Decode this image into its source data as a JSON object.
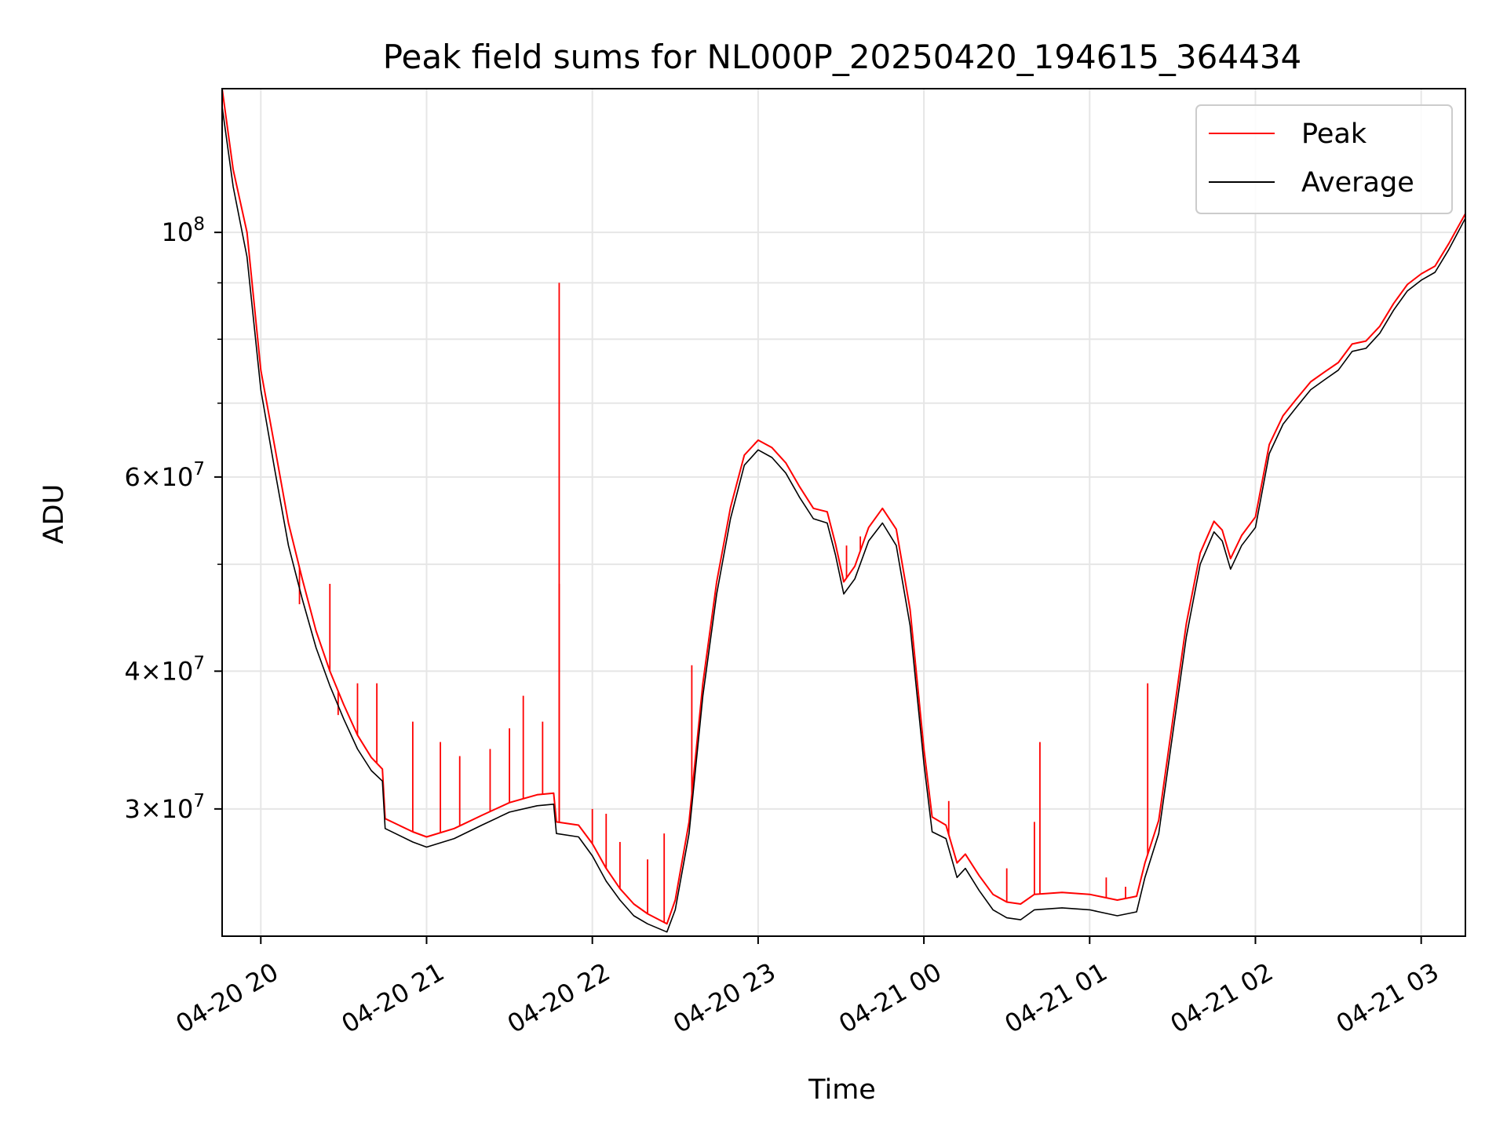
{
  "chart_data": {
    "type": "line",
    "title": "Peak field sums for NL000P_20250420_194615_364434",
    "xlabel": "Time",
    "ylabel": "ADU",
    "yscale": "log",
    "xlim": [
      "2025-04-20 19:46",
      "2025-04-21 03:16"
    ],
    "ylim": [
      23000000,
      135000000
    ],
    "grid": true,
    "legend_position": "top-right",
    "x_ticks": [
      "04-20 20",
      "04-20 21",
      "04-20 22",
      "04-20 23",
      "04-21 00",
      "04-21 01",
      "04-21 02",
      "04-21 03"
    ],
    "y_major_ticks": [
      {
        "value": 30000000,
        "mantissa": "3",
        "exponent": "7"
      },
      {
        "value": 40000000,
        "mantissa": "4",
        "exponent": "7"
      },
      {
        "value": 60000000,
        "mantissa": "6",
        "exponent": "7"
      },
      {
        "value": 100000000,
        "mantissa": "",
        "exponent": "8"
      }
    ],
    "y_minor_ticks": [
      50000000,
      70000000,
      80000000,
      90000000
    ],
    "x_time_format": "minutes relative to 2025-04-20 19:46",
    "series": [
      {
        "name": "Average",
        "color": "#000000",
        "points": [
          [
            "2025-04-20 19:46",
            130000000
          ],
          [
            "2025-04-20 19:50",
            110000000
          ],
          [
            "2025-04-20 19:55",
            95000000
          ],
          [
            "2025-04-20 20:00",
            72000000
          ],
          [
            "2025-04-20 20:05",
            61000000
          ],
          [
            "2025-04-20 20:10",
            52000000
          ],
          [
            "2025-04-20 20:15",
            46500000
          ],
          [
            "2025-04-20 20:20",
            42000000
          ],
          [
            "2025-04-20 20:25",
            38800000
          ],
          [
            "2025-04-20 20:30",
            36200000
          ],
          [
            "2025-04-20 20:35",
            34000000
          ],
          [
            "2025-04-20 20:40",
            32500000
          ],
          [
            "2025-04-20 20:44",
            31800000
          ],
          [
            "2025-04-20 20:45",
            28800000
          ],
          [
            "2025-04-20 20:55",
            28000000
          ],
          [
            "2025-04-20 21:00",
            27700000
          ],
          [
            "2025-04-20 21:10",
            28200000
          ],
          [
            "2025-04-20 21:20",
            29000000
          ],
          [
            "2025-04-20 21:30",
            29800000
          ],
          [
            "2025-04-20 21:40",
            30200000
          ],
          [
            "2025-04-20 21:46",
            30300000
          ],
          [
            "2025-04-20 21:47",
            28500000
          ],
          [
            "2025-04-20 21:55",
            28300000
          ],
          [
            "2025-04-20 22:00",
            27200000
          ],
          [
            "2025-04-20 22:05",
            25800000
          ],
          [
            "2025-04-20 22:10",
            24800000
          ],
          [
            "2025-04-20 22:15",
            24000000
          ],
          [
            "2025-04-20 22:20",
            23600000
          ],
          [
            "2025-04-20 22:27",
            23200000
          ],
          [
            "2025-04-20 22:30",
            24300000
          ],
          [
            "2025-04-20 22:35",
            28500000
          ],
          [
            "2025-04-20 22:40",
            38000000
          ],
          [
            "2025-04-20 22:45",
            47000000
          ],
          [
            "2025-04-20 22:50",
            55000000
          ],
          [
            "2025-04-20 22:55",
            61500000
          ],
          [
            "2025-04-20 23:00",
            63500000
          ],
          [
            "2025-04-20 23:05",
            62500000
          ],
          [
            "2025-04-20 23:10",
            60500000
          ],
          [
            "2025-04-20 23:15",
            57500000
          ],
          [
            "2025-04-20 23:20",
            55000000
          ],
          [
            "2025-04-20 23:25",
            54500000
          ],
          [
            "2025-04-20 23:28",
            51000000
          ],
          [
            "2025-04-20 23:31",
            47000000
          ],
          [
            "2025-04-20 23:35",
            48500000
          ],
          [
            "2025-04-20 23:40",
            52500000
          ],
          [
            "2025-04-20 23:45",
            54500000
          ],
          [
            "2025-04-20 23:50",
            52000000
          ],
          [
            "2025-04-20 23:55",
            44000000
          ],
          [
            "2025-04-21 00:00",
            33000000
          ],
          [
            "2025-04-21 00:03",
            28600000
          ],
          [
            "2025-04-21 00:08",
            28200000
          ],
          [
            "2025-04-21 00:12",
            26000000
          ],
          [
            "2025-04-21 00:15",
            26500000
          ],
          [
            "2025-04-21 00:20",
            25300000
          ],
          [
            "2025-04-21 00:25",
            24300000
          ],
          [
            "2025-04-21 00:30",
            23900000
          ],
          [
            "2025-04-21 00:35",
            23800000
          ],
          [
            "2025-04-21 00:40",
            24300000
          ],
          [
            "2025-04-21 00:50",
            24400000
          ],
          [
            "2025-04-21 01:00",
            24300000
          ],
          [
            "2025-04-21 01:10",
            24000000
          ],
          [
            "2025-04-21 01:17",
            24200000
          ],
          [
            "2025-04-21 01:20",
            26000000
          ],
          [
            "2025-04-21 01:25",
            28500000
          ],
          [
            "2025-04-21 01:30",
            35000000
          ],
          [
            "2025-04-21 01:35",
            43000000
          ],
          [
            "2025-04-21 01:40",
            50000000
          ],
          [
            "2025-04-21 01:45",
            53500000
          ],
          [
            "2025-04-21 01:48",
            52500000
          ],
          [
            "2025-04-21 01:51",
            49500000
          ],
          [
            "2025-04-21 01:55",
            52000000
          ],
          [
            "2025-04-21 02:00",
            54000000
          ],
          [
            "2025-04-21 02:05",
            63000000
          ],
          [
            "2025-04-21 02:10",
            67000000
          ],
          [
            "2025-04-21 02:15",
            69500000
          ],
          [
            "2025-04-21 02:20",
            72000000
          ],
          [
            "2025-04-21 02:25",
            73500000
          ],
          [
            "2025-04-21 02:30",
            75000000
          ],
          [
            "2025-04-21 02:35",
            78000000
          ],
          [
            "2025-04-21 02:40",
            78500000
          ],
          [
            "2025-04-21 02:45",
            81000000
          ],
          [
            "2025-04-21 02:50",
            85000000
          ],
          [
            "2025-04-21 02:55",
            88500000
          ],
          [
            "2025-04-21 03:00",
            90500000
          ],
          [
            "2025-04-21 03:05",
            92000000
          ],
          [
            "2025-04-21 03:10",
            96500000
          ],
          [
            "2025-04-21 03:16",
            103000000
          ]
        ]
      },
      {
        "name": "Peak",
        "color": "#ff0000",
        "points": [
          [
            "2025-04-20 19:46",
            135000000
          ],
          [
            "2025-04-20 19:50",
            114000000
          ],
          [
            "2025-04-20 19:55",
            100000000
          ],
          [
            "2025-04-20 20:00",
            75000000
          ],
          [
            "2025-04-20 20:05",
            64000000
          ],
          [
            "2025-04-20 20:10",
            54500000
          ],
          [
            "2025-04-20 20:15",
            48500000
          ],
          [
            "2025-04-20 20:20",
            43500000
          ],
          [
            "2025-04-20 20:25",
            40000000
          ],
          [
            "2025-04-20 20:30",
            37300000
          ],
          [
            "2025-04-20 20:35",
            35000000
          ],
          [
            "2025-04-20 20:40",
            33400000
          ],
          [
            "2025-04-20 20:44",
            32600000
          ],
          [
            "2025-04-20 20:45",
            29400000
          ],
          [
            "2025-04-20 20:55",
            28600000
          ],
          [
            "2025-04-20 21:00",
            28300000
          ],
          [
            "2025-04-20 21:10",
            28800000
          ],
          [
            "2025-04-20 21:20",
            29600000
          ],
          [
            "2025-04-20 21:30",
            30400000
          ],
          [
            "2025-04-20 21:40",
            30900000
          ],
          [
            "2025-04-20 21:46",
            31000000
          ],
          [
            "2025-04-20 21:47",
            29200000
          ],
          [
            "2025-04-20 21:55",
            29000000
          ],
          [
            "2025-04-20 22:00",
            27900000
          ],
          [
            "2025-04-20 22:05",
            26500000
          ],
          [
            "2025-04-20 22:10",
            25400000
          ],
          [
            "2025-04-20 22:15",
            24600000
          ],
          [
            "2025-04-20 22:20",
            24100000
          ],
          [
            "2025-04-20 22:27",
            23600000
          ],
          [
            "2025-04-20 22:30",
            24800000
          ],
          [
            "2025-04-20 22:35",
            29200000
          ],
          [
            "2025-04-20 22:40",
            39000000
          ],
          [
            "2025-04-20 22:45",
            48200000
          ],
          [
            "2025-04-20 22:50",
            56300000
          ],
          [
            "2025-04-20 22:55",
            62800000
          ],
          [
            "2025-04-20 23:00",
            64800000
          ],
          [
            "2025-04-20 23:05",
            63800000
          ],
          [
            "2025-04-20 23:10",
            61800000
          ],
          [
            "2025-04-20 23:15",
            58800000
          ],
          [
            "2025-04-20 23:20",
            56200000
          ],
          [
            "2025-04-20 23:25",
            55800000
          ],
          [
            "2025-04-20 23:28",
            52200000
          ],
          [
            "2025-04-20 23:31",
            48200000
          ],
          [
            "2025-04-20 23:35",
            49800000
          ],
          [
            "2025-04-20 23:40",
            54000000
          ],
          [
            "2025-04-20 23:45",
            56200000
          ],
          [
            "2025-04-20 23:50",
            53800000
          ],
          [
            "2025-04-20 23:55",
            45500000
          ],
          [
            "2025-04-21 00:00",
            34000000
          ],
          [
            "2025-04-21 00:03",
            29500000
          ],
          [
            "2025-04-21 00:08",
            29000000
          ],
          [
            "2025-04-21 00:12",
            26800000
          ],
          [
            "2025-04-21 00:15",
            27300000
          ],
          [
            "2025-04-21 00:20",
            26100000
          ],
          [
            "2025-04-21 00:25",
            25100000
          ],
          [
            "2025-04-21 00:30",
            24700000
          ],
          [
            "2025-04-21 00:35",
            24600000
          ],
          [
            "2025-04-21 00:40",
            25100000
          ],
          [
            "2025-04-21 00:50",
            25200000
          ],
          [
            "2025-04-21 01:00",
            25100000
          ],
          [
            "2025-04-21 01:10",
            24800000
          ],
          [
            "2025-04-21 01:17",
            25000000
          ],
          [
            "2025-04-21 01:20",
            26800000
          ],
          [
            "2025-04-21 01:25",
            29300000
          ],
          [
            "2025-04-21 01:30",
            36000000
          ],
          [
            "2025-04-21 01:35",
            44200000
          ],
          [
            "2025-04-21 01:40",
            51200000
          ],
          [
            "2025-04-21 01:45",
            54700000
          ],
          [
            "2025-04-21 01:48",
            53700000
          ],
          [
            "2025-04-21 01:51",
            50600000
          ],
          [
            "2025-04-21 01:55",
            53100000
          ],
          [
            "2025-04-21 02:00",
            55200000
          ],
          [
            "2025-04-21 02:05",
            64200000
          ],
          [
            "2025-04-21 02:10",
            68200000
          ],
          [
            "2025-04-21 02:15",
            70700000
          ],
          [
            "2025-04-21 02:20",
            73200000
          ],
          [
            "2025-04-21 02:25",
            74700000
          ],
          [
            "2025-04-21 02:30",
            76200000
          ],
          [
            "2025-04-21 02:35",
            79200000
          ],
          [
            "2025-04-21 02:40",
            79700000
          ],
          [
            "2025-04-21 02:45",
            82200000
          ],
          [
            "2025-04-21 02:50",
            86200000
          ],
          [
            "2025-04-21 02:55",
            89700000
          ],
          [
            "2025-04-21 03:00",
            91700000
          ],
          [
            "2025-04-21 03:05",
            93200000
          ],
          [
            "2025-04-21 03:10",
            97700000
          ],
          [
            "2025-04-21 03:16",
            104000000
          ]
        ],
        "spikes": [
          [
            "2025-04-20 20:14",
            46000000
          ],
          [
            "2025-04-20 20:25",
            48000000
          ],
          [
            "2025-04-20 20:28",
            36500000
          ],
          [
            "2025-04-20 20:35",
            39000000
          ],
          [
            "2025-04-20 20:42",
            39000000
          ],
          [
            "2025-04-20 20:55",
            36000000
          ],
          [
            "2025-04-20 21:05",
            34500000
          ],
          [
            "2025-04-20 21:12",
            33500000
          ],
          [
            "2025-04-20 21:23",
            34000000
          ],
          [
            "2025-04-20 21:30",
            35500000
          ],
          [
            "2025-04-20 21:35",
            38000000
          ],
          [
            "2025-04-20 21:42",
            36000000
          ],
          [
            "2025-04-20 21:48",
            48000000
          ],
          [
            "2025-04-20 21:48",
            90000000
          ],
          [
            "2025-04-20 22:00",
            30000000
          ],
          [
            "2025-04-20 22:05",
            29700000
          ],
          [
            "2025-04-20 22:10",
            28000000
          ],
          [
            "2025-04-20 22:20",
            27000000
          ],
          [
            "2025-04-20 22:26",
            28500000
          ],
          [
            "2025-04-20 22:36",
            40500000
          ],
          [
            "2025-04-20 22:59",
            64500000
          ],
          [
            "2025-04-20 23:32",
            52000000
          ],
          [
            "2025-04-20 23:37",
            53000000
          ],
          [
            "2025-04-20 23:41",
            54500000
          ],
          [
            "2025-04-21 00:09",
            30500000
          ],
          [
            "2025-04-21 00:30",
            26500000
          ],
          [
            "2025-04-21 00:40",
            29200000
          ],
          [
            "2025-04-21 00:42",
            34500000
          ],
          [
            "2025-04-21 01:06",
            26000000
          ],
          [
            "2025-04-21 01:13",
            25500000
          ],
          [
            "2025-04-21 01:21",
            39000000
          ]
        ]
      }
    ]
  }
}
